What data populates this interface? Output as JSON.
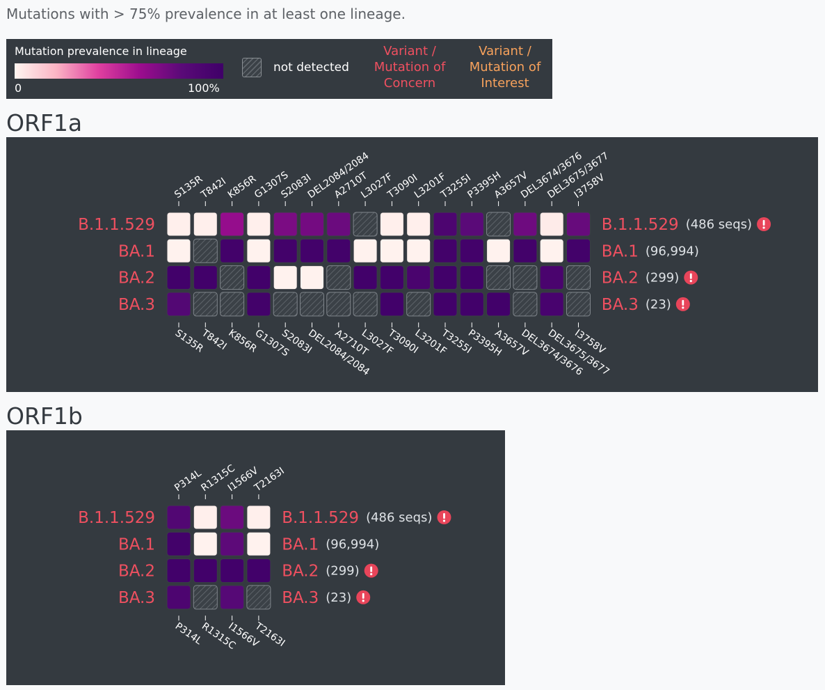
{
  "caption": "Mutations with > 75% prevalence in at least one lineage.",
  "legend": {
    "title": "Mutation prevalence in lineage",
    "min_label": "0",
    "max_label": "100%",
    "not_detected_label": "not detected",
    "voc_label": "Variant / Mutation of Concern",
    "voi_label": "Variant / Mutation of Interest",
    "voc_color": "#ef5060",
    "voi_color": "#f8a25c",
    "scale_colors": [
      "#fff5f0",
      "#fbb4c4",
      "#e040a0",
      "#9c0d8e",
      "#5a0a78",
      "#3f0068"
    ]
  },
  "colors": {
    "panel_bg": "#343a40",
    "lineage_label": "#ef5060",
    "count_text": "#dee2e6",
    "warning_icon": "#e8455a",
    "tick_label": "#ffffff"
  },
  "chart_data": [
    {
      "type": "heatmap",
      "title": "ORF1a",
      "value_scale": "prevalence fraction 0-1; null = not detected",
      "mutations": [
        "S135R",
        "T842I",
        "K856R",
        "G1307S",
        "S2083I",
        "DEL2084/2084",
        "A2710T",
        "L3027F",
        "T3090I",
        "L3201F",
        "T3255I",
        "P3395H",
        "A3657V",
        "DEL3674/3676",
        "DEL3675/3677",
        "I3758V"
      ],
      "lineages": [
        {
          "name": "B.1.1.529",
          "count": "(486 seqs)",
          "warning": true
        },
        {
          "name": "BA.1",
          "count": "(96,994)",
          "warning": false
        },
        {
          "name": "BA.2",
          "count": "(299)",
          "warning": true
        },
        {
          "name": "BA.3",
          "count": "(23)",
          "warning": true
        }
      ],
      "values": [
        [
          0.02,
          0.02,
          0.62,
          0.02,
          0.7,
          0.72,
          0.75,
          null,
          0.02,
          0.02,
          0.9,
          0.8,
          null,
          0.74,
          0.03,
          0.76
        ],
        [
          0.01,
          null,
          0.97,
          0.01,
          0.97,
          0.97,
          0.97,
          0.01,
          0.01,
          0.01,
          0.97,
          0.97,
          0.01,
          0.97,
          0.01,
          0.97
        ],
        [
          0.98,
          0.98,
          null,
          0.98,
          0.01,
          0.01,
          null,
          0.98,
          0.98,
          0.92,
          0.98,
          0.98,
          null,
          null,
          0.92,
          null
        ],
        [
          0.85,
          null,
          null,
          0.97,
          null,
          null,
          null,
          null,
          0.98,
          null,
          0.98,
          0.98,
          0.98,
          null,
          0.93,
          null
        ]
      ]
    },
    {
      "type": "heatmap",
      "title": "ORF1b",
      "value_scale": "prevalence fraction 0-1; null = not detected",
      "mutations": [
        "P314L",
        "R1315C",
        "I1566V",
        "T2163I"
      ],
      "lineages": [
        {
          "name": "B.1.1.529",
          "count": "(486 seqs)",
          "warning": true
        },
        {
          "name": "BA.1",
          "count": "(96,994)",
          "warning": false
        },
        {
          "name": "BA.2",
          "count": "(299)",
          "warning": true
        },
        {
          "name": "BA.3",
          "count": "(23)",
          "warning": true
        }
      ],
      "values": [
        [
          0.86,
          0.02,
          0.75,
          0.02
        ],
        [
          0.97,
          0.01,
          0.79,
          0.01
        ],
        [
          0.98,
          0.98,
          0.98,
          0.98
        ],
        [
          0.9,
          null,
          0.83,
          null
        ]
      ]
    }
  ]
}
